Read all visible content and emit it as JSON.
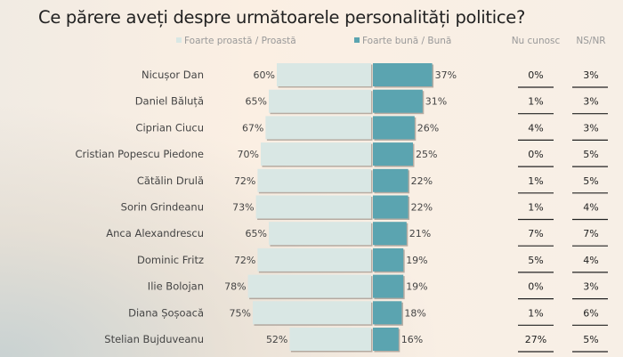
{
  "chart_data": {
    "type": "bar",
    "title": "Ce părere aveți despre următoarele personalități politice?",
    "legend": [
      {
        "label": "Foarte proastă / Proastă",
        "color": "#d9e7e4"
      },
      {
        "label": "Foarte bună / Bună",
        "color": "#5ba4b0"
      }
    ],
    "column_headers": [
      "Nu cunosc",
      "NS/NR"
    ],
    "categories": [
      "Nicușor Dan",
      "Daniel Băluță",
      "Ciprian Ciucu",
      "Cristian Popescu Piedone",
      "Cătălin Drulă",
      "Sorin Grindeanu",
      "Anca Alexandrescu",
      "Dominic Fritz",
      "Ilie Bolojan",
      "Diana Șoșoacă",
      "Stelian Bujduveanu"
    ],
    "series": [
      {
        "name": "Foarte proastă / Proastă",
        "values": [
          60,
          65,
          67,
          70,
          72,
          73,
          65,
          72,
          78,
          75,
          52
        ]
      },
      {
        "name": "Foarte bună / Bună",
        "values": [
          37,
          31,
          26,
          25,
          22,
          22,
          21,
          19,
          19,
          18,
          16
        ]
      },
      {
        "name": "Nu cunosc",
        "values": [
          0,
          1,
          4,
          0,
          1,
          1,
          7,
          5,
          0,
          1,
          27
        ]
      },
      {
        "name": "NS/NR",
        "values": [
          3,
          3,
          3,
          5,
          5,
          4,
          7,
          4,
          3,
          6,
          5
        ]
      }
    ],
    "unit": "%"
  }
}
